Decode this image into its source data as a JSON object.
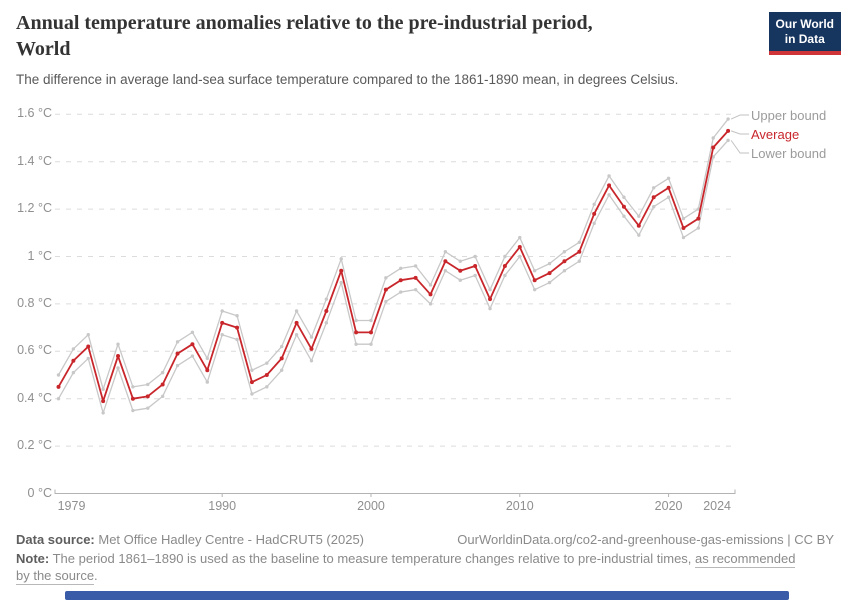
{
  "header": {
    "title_line1": "Annual temperature anomalies relative to the pre-industrial period,",
    "title_line2": "World",
    "subtitle": "The difference in average land-sea surface temperature compared to the 1861-1890 mean, in degrees Celsius."
  },
  "logo": {
    "line1": "Our World",
    "line2": "in Data"
  },
  "chart_data": {
    "type": "line",
    "title": "Annual temperature anomalies relative to the pre-industrial period, World",
    "xlabel": "",
    "ylabel": "°C",
    "ylim": [
      0,
      1.6
    ],
    "grid": "horizontal-dashed",
    "legend_position": "right",
    "x": [
      1979,
      1980,
      1981,
      1982,
      1983,
      1984,
      1985,
      1986,
      1987,
      1988,
      1989,
      1990,
      1991,
      1992,
      1993,
      1994,
      1995,
      1996,
      1997,
      1998,
      1999,
      2000,
      2001,
      2002,
      2003,
      2004,
      2005,
      2006,
      2007,
      2008,
      2009,
      2010,
      2011,
      2012,
      2013,
      2014,
      2015,
      2016,
      2017,
      2018,
      2019,
      2020,
      2021,
      2022,
      2023,
      2024
    ],
    "series": [
      {
        "name": "Upper bound",
        "color": "#c8c8c8",
        "values": [
          0.5,
          0.61,
          0.67,
          0.44,
          0.63,
          0.45,
          0.46,
          0.51,
          0.64,
          0.68,
          0.57,
          0.77,
          0.75,
          0.52,
          0.55,
          0.62,
          0.77,
          0.66,
          0.82,
          0.99,
          0.73,
          0.73,
          0.91,
          0.95,
          0.96,
          0.88,
          1.02,
          0.98,
          1.0,
          0.86,
          1.0,
          1.08,
          0.94,
          0.97,
          1.02,
          1.06,
          1.22,
          1.34,
          1.25,
          1.17,
          1.29,
          1.33,
          1.16,
          1.2,
          1.5,
          1.58
        ]
      },
      {
        "name": "Average",
        "color": "#c8262b",
        "values": [
          0.45,
          0.56,
          0.62,
          0.39,
          0.58,
          0.4,
          0.41,
          0.46,
          0.59,
          0.63,
          0.52,
          0.72,
          0.7,
          0.47,
          0.5,
          0.57,
          0.72,
          0.61,
          0.77,
          0.94,
          0.68,
          0.68,
          0.86,
          0.9,
          0.91,
          0.84,
          0.98,
          0.94,
          0.96,
          0.82,
          0.96,
          1.04,
          0.9,
          0.93,
          0.98,
          1.02,
          1.18,
          1.3,
          1.21,
          1.13,
          1.25,
          1.29,
          1.12,
          1.16,
          1.46,
          1.53
        ]
      },
      {
        "name": "Lower bound",
        "color": "#c8c8c8",
        "values": [
          0.4,
          0.51,
          0.57,
          0.34,
          0.53,
          0.35,
          0.36,
          0.41,
          0.54,
          0.58,
          0.47,
          0.67,
          0.65,
          0.42,
          0.45,
          0.52,
          0.67,
          0.56,
          0.72,
          0.89,
          0.63,
          0.63,
          0.81,
          0.85,
          0.86,
          0.8,
          0.94,
          0.9,
          0.92,
          0.78,
          0.92,
          1.0,
          0.86,
          0.89,
          0.94,
          0.98,
          1.14,
          1.26,
          1.17,
          1.09,
          1.21,
          1.25,
          1.08,
          1.12,
          1.42,
          1.49
        ]
      }
    ],
    "y_ticks": [
      {
        "value": 0,
        "label": "0 °C"
      },
      {
        "value": 0.2,
        "label": "0.2 °C"
      },
      {
        "value": 0.4,
        "label": "0.4 °C"
      },
      {
        "value": 0.6,
        "label": "0.6 °C"
      },
      {
        "value": 0.8,
        "label": "0.8 °C"
      },
      {
        "value": 1,
        "label": "1 °C"
      },
      {
        "value": 1.2,
        "label": "1.2 °C"
      },
      {
        "value": 1.4,
        "label": "1.4 °C"
      },
      {
        "value": 1.6,
        "label": "1.6 °C"
      }
    ],
    "x_ticks": [
      {
        "value": 1979,
        "label": "1979"
      },
      {
        "value": 1990,
        "label": "1990"
      },
      {
        "value": 2000,
        "label": "2000"
      },
      {
        "value": 2010,
        "label": "2010"
      },
      {
        "value": 2020,
        "label": "2020"
      },
      {
        "value": 2024,
        "label": "2024"
      }
    ]
  },
  "footer": {
    "data_source_label": "Data source:",
    "data_source": " Met Office Hadley Centre - HadCRUT5 (2025)",
    "attribution": "OurWorldinData.org/co2-and-greenhouse-gas-emissions | CC BY",
    "note_label": "Note:",
    "note": " The period 1861–1890 is used as the baseline to measure temperature changes relative to pre-industrial times, ",
    "note_link": "as recommended by the source",
    "note_end": "."
  },
  "colors": {
    "average_line": "#c8262b",
    "bound_line": "#c8c8c8",
    "gridline": "#dcdcdc",
    "axis": "#b3b3b3",
    "tick_text": "#8f8f8f",
    "title_text": "#333333",
    "subtitle_text": "#595959",
    "footer_text": "#8a8a8a",
    "logo_background": "#16355f",
    "logo_stripe": "#cf3538",
    "timeline_bar": "#3a5ca8"
  }
}
